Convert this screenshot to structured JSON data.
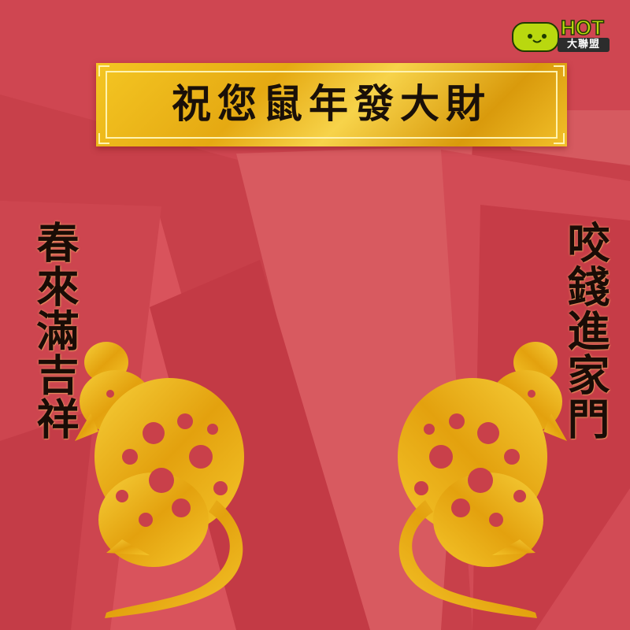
{
  "banner": {
    "title": "祝您鼠年發大財"
  },
  "couplets": {
    "left": "春來滿吉祥",
    "right": "咬錢進家門"
  },
  "logo": {
    "hot": "HOT",
    "subtitle": "大聯盟"
  },
  "colors": {
    "background": "#c9404a",
    "gold": "#f2c02a",
    "text": "#1a1008",
    "logo_green": "#b9d80f"
  },
  "icons": {
    "left_figure": "rat-zodiac-papercut",
    "right_figure": "rat-zodiac-papercut",
    "logo_mascot": "smiley-face-icon"
  }
}
